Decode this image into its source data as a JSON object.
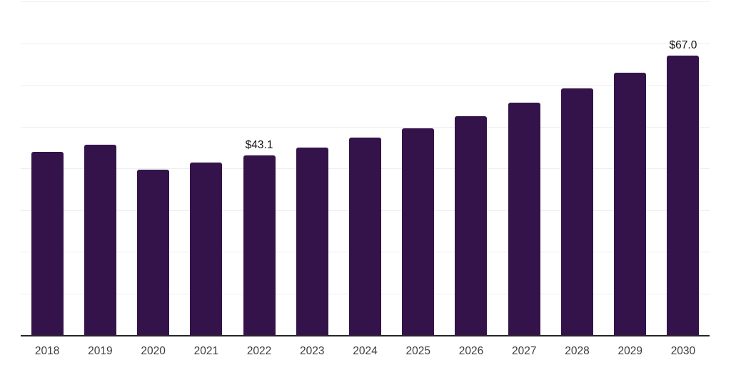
{
  "chart_data": {
    "type": "bar",
    "title": "",
    "xlabel": "",
    "ylabel": "",
    "categories": [
      "2018",
      "2019",
      "2020",
      "2021",
      "2022",
      "2023",
      "2024",
      "2025",
      "2026",
      "2027",
      "2028",
      "2029",
      "2030"
    ],
    "values": [
      44.0,
      45.7,
      39.7,
      41.4,
      43.1,
      45.0,
      47.4,
      49.6,
      52.4,
      55.7,
      59.1,
      62.9,
      67.0
    ],
    "data_labels": {
      "2022": "$43.1",
      "2030": "$67.0"
    },
    "ylim": [
      0,
      80
    ],
    "gridline_step": 10,
    "grid": true,
    "legend": "none",
    "colors": {
      "bar": "#34134a",
      "axis_line": "#262626",
      "gridline": "#eeeeee",
      "value_label": "#141414",
      "tick_label": "#3c3c3c",
      "background": "#ffffff"
    }
  }
}
